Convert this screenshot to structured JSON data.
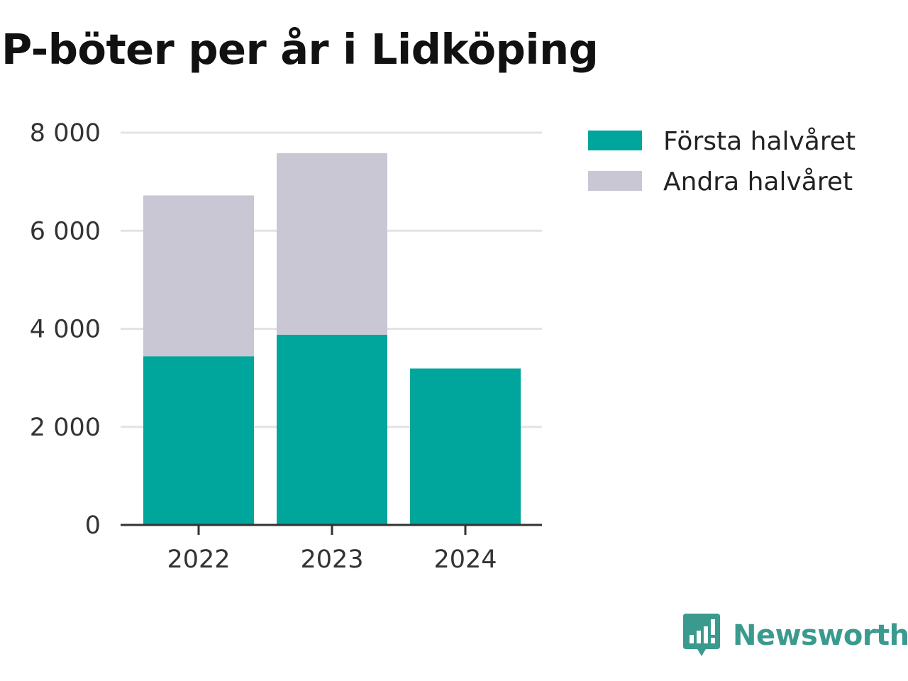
{
  "title": "P-böter per år i Lidköping",
  "colors": {
    "first_half": "#00a59b",
    "second_half": "#c8c7d3",
    "grid": "#e3e3e3",
    "axis": "#333333",
    "brand": "#3a9a8e"
  },
  "logo": {
    "text": "Newsworthy",
    "icon": "bar-chart-speech-bubble-icon"
  },
  "chart_data": {
    "type": "bar",
    "stacked": true,
    "categories": [
      "2022",
      "2023",
      "2024"
    ],
    "series": [
      {
        "name": "Första halvåret",
        "values": [
          3440,
          3880,
          3190
        ]
      },
      {
        "name": "Andra halvåret",
        "values": [
          3280,
          3700,
          0
        ]
      }
    ],
    "ylim": [
      0,
      8000
    ],
    "yticks": [
      0,
      2000,
      4000,
      6000,
      8000
    ],
    "ytick_labels": [
      "0",
      "2 000",
      "4 000",
      "6 000",
      "8 000"
    ],
    "xlabel": "",
    "ylabel": "",
    "grid": true,
    "legend": "top-right"
  }
}
